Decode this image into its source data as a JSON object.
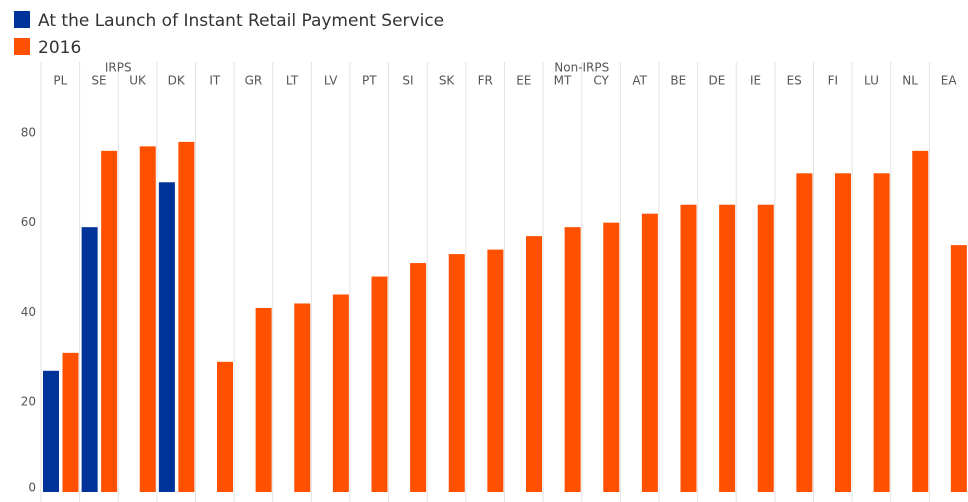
{
  "chart_data": {
    "type": "bar",
    "groups": [
      {
        "name": "IRPS",
        "categories": [
          "PL",
          "SE",
          "UK",
          "DK"
        ]
      },
      {
        "name": "Non-IRPS",
        "categories": [
          "IT",
          "GR",
          "LT",
          "LV",
          "PT",
          "SI",
          "SK",
          "FR",
          "EE",
          "MT",
          "CY",
          "AT",
          "BE",
          "DE",
          "IE",
          "ES",
          "FI",
          "LU",
          "NL",
          "EA"
        ]
      }
    ],
    "series": [
      {
        "name": "At the Launch of Instant Retail Payment Service",
        "color": "#003399",
        "values": [
          27,
          59,
          null,
          69,
          null,
          null,
          null,
          null,
          null,
          null,
          null,
          null,
          null,
          null,
          null,
          null,
          null,
          null,
          null,
          null,
          null,
          null,
          null,
          null
        ]
      },
      {
        "name": "2016",
        "color": "#ff5000",
        "values": [
          31,
          76,
          77,
          78,
          29,
          41,
          42,
          44,
          48,
          51,
          53,
          54,
          57,
          59,
          60,
          62,
          64,
          64,
          64,
          71,
          71,
          71,
          76,
          55
        ]
      }
    ],
    "ylim": [
      0,
      90
    ],
    "yticks": [
      0,
      20,
      40,
      60,
      80
    ],
    "grid": false,
    "legend": "top-left"
  }
}
